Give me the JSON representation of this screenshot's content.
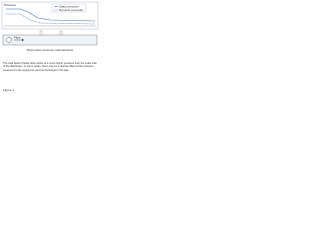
{
  "diagram": {
    "axis_label": "Pressure",
    "legend": [
      "Static pressure",
      "Dynamic pressure"
    ],
    "bottom_label": "Piezometer pressure (atmospheric)",
    "flow_label": "Flow"
  },
  "caption": {
    "text": "The total head of fluids often works at a much higher pressure than the outlet side of the diaphragm. In some cases, there may be a diverse effect of the pressure measured in the supply line and the discharge in the pipe.",
    "figure": "Figure 1"
  }
}
